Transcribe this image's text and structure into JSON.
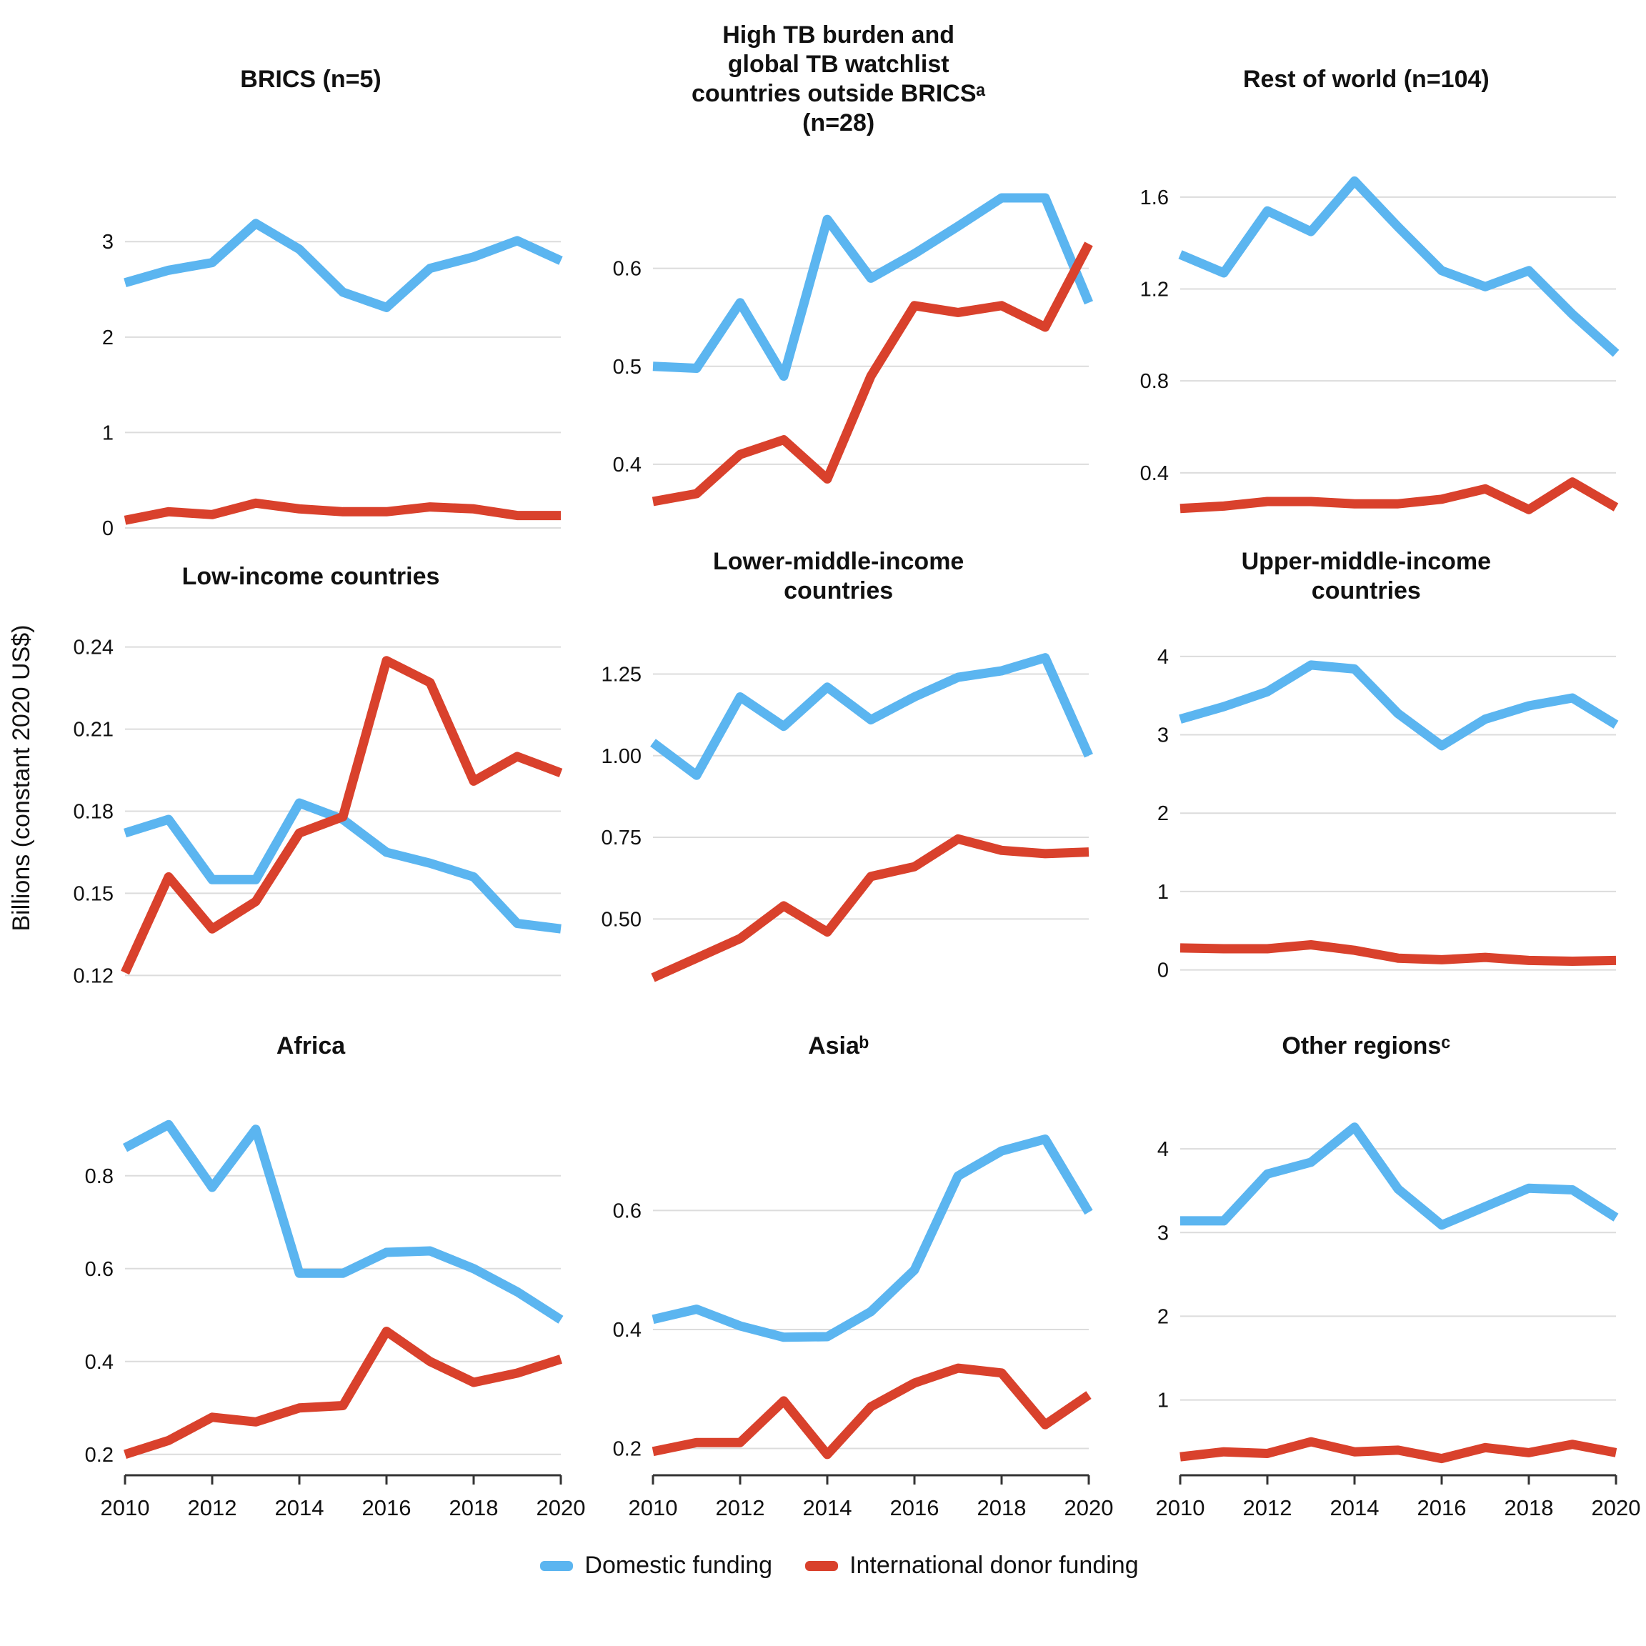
{
  "figure": {
    "y_axis_label": "Billions (constant 2020 US$)",
    "colors": {
      "domestic": "#5bb5f0",
      "international": "#d9412c",
      "gridline": "#dcdcdc",
      "axis": "#333333"
    },
    "legend": [
      {
        "key": "domestic",
        "label": "Domestic funding"
      },
      {
        "key": "international",
        "label": "International donor funding"
      }
    ]
  },
  "chart_data": {
    "type": "line",
    "x_years": [
      2010,
      2011,
      2012,
      2013,
      2014,
      2015,
      2016,
      2017,
      2018,
      2019,
      2020
    ],
    "x_ticks": [
      2010,
      2012,
      2014,
      2016,
      2018,
      2020
    ],
    "x_tick_labels": [
      "2010",
      "2012",
      "2014",
      "2016",
      "2018",
      "2020"
    ],
    "xlabel": "",
    "ylabel": "Billions (constant 2020 US$)",
    "legend_position": "bottom",
    "grid": true,
    "panels": [
      {
        "title": "BRICS (n=5)",
        "ylim": [
          0,
          3.9
        ],
        "yticks": [
          {
            "v": 0,
            "label": "0"
          },
          {
            "v": 1,
            "label": "1"
          },
          {
            "v": 2,
            "label": "2"
          },
          {
            "v": 3,
            "label": "3"
          }
        ],
        "show_x_axis": false,
        "series": [
          {
            "key": "domestic",
            "name": "Domestic funding",
            "values": [
              2.57,
              2.7,
              2.78,
              3.19,
              2.92,
              2.47,
              2.31,
              2.72,
              2.84,
              3.01,
              2.8
            ]
          },
          {
            "key": "international",
            "name": "International donor funding",
            "values": [
              0.08,
              0.17,
              0.14,
              0.26,
              0.2,
              0.17,
              0.17,
              0.22,
              0.2,
              0.13,
              0.13
            ]
          }
        ]
      },
      {
        "title": "High TB burden and\nglobal TB watchlist\ncountries outside BRICSᵃ\n(n=28)",
        "ylim": [
          0.335,
          0.715
        ],
        "yticks": [
          {
            "v": 0.4,
            "label": "0.4"
          },
          {
            "v": 0.5,
            "label": "0.5"
          },
          {
            "v": 0.6,
            "label": "0.6"
          }
        ],
        "show_x_axis": false,
        "series": [
          {
            "key": "domestic",
            "name": "Domestic funding",
            "values": [
              0.5,
              0.498,
              0.565,
              0.49,
              0.65,
              0.59,
              0.615,
              0.643,
              0.672,
              0.672,
              0.565
            ]
          },
          {
            "key": "international",
            "name": "International donor funding",
            "values": [
              0.362,
              0.37,
              0.41,
              0.425,
              0.385,
              0.49,
              0.562,
              0.555,
              0.562,
              0.54,
              0.625
            ]
          }
        ]
      },
      {
        "title": "Rest of world (n=104)",
        "ylim": [
          0.16,
          1.78
        ],
        "yticks": [
          {
            "v": 0.4,
            "label": "0.4"
          },
          {
            "v": 0.8,
            "label": "0.8"
          },
          {
            "v": 1.2,
            "label": "1.2"
          },
          {
            "v": 1.6,
            "label": "1.6"
          }
        ],
        "show_x_axis": false,
        "series": [
          {
            "key": "domestic",
            "name": "Domestic funding",
            "values": [
              1.35,
              1.27,
              1.54,
              1.45,
              1.67,
              1.47,
              1.28,
              1.21,
              1.28,
              1.09,
              0.92
            ]
          },
          {
            "key": "international",
            "name": "International donor funding",
            "values": [
              0.245,
              0.255,
              0.275,
              0.275,
              0.265,
              0.265,
              0.285,
              0.33,
              0.24,
              0.36,
              0.25
            ]
          }
        ]
      },
      {
        "title": "Low-income countries",
        "ylim": [
          0.112,
          0.248
        ],
        "yticks": [
          {
            "v": 0.12,
            "label": "0.12"
          },
          {
            "v": 0.15,
            "label": "0.15"
          },
          {
            "v": 0.18,
            "label": "0.18"
          },
          {
            "v": 0.21,
            "label": "0.21"
          },
          {
            "v": 0.24,
            "label": "0.24"
          }
        ],
        "show_x_axis": false,
        "series": [
          {
            "key": "domestic",
            "name": "Domestic funding",
            "values": [
              0.172,
              0.177,
              0.155,
              0.155,
              0.183,
              0.177,
              0.165,
              0.161,
              0.156,
              0.139,
              0.137
            ]
          },
          {
            "key": "international",
            "name": "International donor funding",
            "values": [
              0.121,
              0.156,
              0.137,
              0.147,
              0.172,
              0.178,
              0.235,
              0.227,
              0.191,
              0.2,
              0.194
            ]
          }
        ]
      },
      {
        "title": "Lower-middle-income\ncountries",
        "ylim": [
          0.26,
          1.4
        ],
        "yticks": [
          {
            "v": 0.5,
            "label": "0.50"
          },
          {
            "v": 0.75,
            "label": "0.75"
          },
          {
            "v": 1.0,
            "label": "1.00"
          },
          {
            "v": 1.25,
            "label": "1.25"
          }
        ],
        "show_x_axis": false,
        "series": [
          {
            "key": "domestic",
            "name": "Domestic funding",
            "values": [
              1.04,
              0.94,
              1.18,
              1.09,
              1.21,
              1.11,
              1.18,
              1.24,
              1.26,
              1.3,
              1.0
            ]
          },
          {
            "key": "international",
            "name": "International donor funding",
            "values": [
              0.32,
              0.38,
              0.44,
              0.54,
              0.46,
              0.63,
              0.66,
              0.745,
              0.71,
              0.7,
              0.705
            ]
          }
        ]
      },
      {
        "title": "Upper-middle-income\ncountries",
        "ylim": [
          -0.35,
          4.4
        ],
        "yticks": [
          {
            "v": 0,
            "label": "0"
          },
          {
            "v": 1,
            "label": "1"
          },
          {
            "v": 2,
            "label": "2"
          },
          {
            "v": 3,
            "label": "3"
          },
          {
            "v": 4,
            "label": "4"
          }
        ],
        "show_x_axis": false,
        "series": [
          {
            "key": "domestic",
            "name": "Domestic funding",
            "values": [
              3.2,
              3.36,
              3.55,
              3.89,
              3.84,
              3.27,
              2.86,
              3.2,
              3.37,
              3.47,
              3.13
            ]
          },
          {
            "key": "international",
            "name": "International donor funding",
            "values": [
              0.28,
              0.27,
              0.27,
              0.32,
              0.25,
              0.15,
              0.13,
              0.16,
              0.12,
              0.11,
              0.12
            ]
          }
        ]
      },
      {
        "title": "Africa",
        "ylim": [
          0.155,
          0.975
        ],
        "yticks": [
          {
            "v": 0.2,
            "label": "0.2"
          },
          {
            "v": 0.4,
            "label": "0.4"
          },
          {
            "v": 0.6,
            "label": "0.6"
          },
          {
            "v": 0.8,
            "label": "0.8"
          }
        ],
        "show_x_axis": true,
        "series": [
          {
            "key": "domestic",
            "name": "Domestic funding",
            "values": [
              0.86,
              0.91,
              0.775,
              0.9,
              0.59,
              0.59,
              0.635,
              0.638,
              0.6,
              0.55,
              0.49
            ]
          },
          {
            "key": "international",
            "name": "International donor funding",
            "values": [
              0.2,
              0.23,
              0.28,
              0.27,
              0.3,
              0.305,
              0.465,
              0.4,
              0.355,
              0.375,
              0.405
            ]
          }
        ]
      },
      {
        "title": "Asiaᵇ",
        "ylim": [
          0.155,
          0.795
        ],
        "yticks": [
          {
            "v": 0.2,
            "label": "0.2"
          },
          {
            "v": 0.4,
            "label": "0.4"
          },
          {
            "v": 0.6,
            "label": "0.6"
          }
        ],
        "show_x_axis": true,
        "series": [
          {
            "key": "domestic",
            "name": "Domestic funding",
            "values": [
              0.417,
              0.434,
              0.406,
              0.387,
              0.388,
              0.43,
              0.5,
              0.658,
              0.7,
              0.72,
              0.597
            ]
          },
          {
            "key": "international",
            "name": "International donor funding",
            "values": [
              0.195,
              0.21,
              0.21,
              0.28,
              0.19,
              0.27,
              0.31,
              0.335,
              0.327,
              0.24,
              0.29
            ]
          }
        ]
      },
      {
        "title": "Other regionsᶜ",
        "ylim": [
          0.1,
          4.65
        ],
        "yticks": [
          {
            "v": 1,
            "label": "1"
          },
          {
            "v": 2,
            "label": "2"
          },
          {
            "v": 3,
            "label": "3"
          },
          {
            "v": 4,
            "label": "4"
          }
        ],
        "show_x_axis": true,
        "series": [
          {
            "key": "domestic",
            "name": "Domestic funding",
            "values": [
              3.14,
              3.14,
              3.7,
              3.84,
              4.26,
              3.52,
              3.09,
              3.31,
              3.53,
              3.51,
              3.18
            ]
          },
          {
            "key": "international",
            "name": "International donor funding",
            "values": [
              0.32,
              0.38,
              0.36,
              0.5,
              0.38,
              0.4,
              0.3,
              0.43,
              0.37,
              0.47,
              0.37
            ]
          }
        ]
      }
    ]
  }
}
